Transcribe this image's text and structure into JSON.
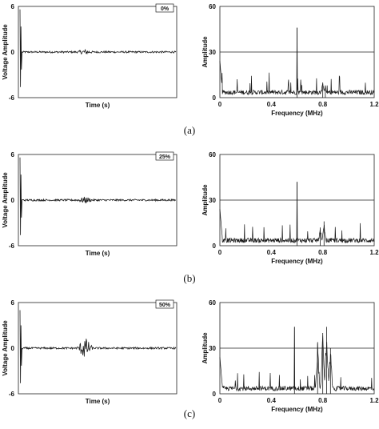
{
  "figure": {
    "rows": [
      {
        "panel_label": "(a)",
        "time_chart": {
          "type": "line",
          "badge": "0%",
          "ylabel": "Voltage Amplitude",
          "xlabel": "Time (s)",
          "yticks": [
            "6",
            "0",
            "-6"
          ],
          "ylim": [
            -6,
            6
          ],
          "burst_amplitude": 0.25,
          "initial_spike": [
            5.6,
            -4.6
          ]
        },
        "freq_chart": {
          "type": "line",
          "ylabel": "Amplitude",
          "xlabel": "Frequency (MHz)",
          "yticks": [
            "60",
            "30",
            "0"
          ],
          "xticks": [
            "0",
            "0.4",
            "0.8",
            "1.2"
          ],
          "ylim": [
            0,
            60
          ],
          "xlim": [
            0,
            1.2
          ],
          "reference_line": 30,
          "peaks": [
            {
              "x": 0.6,
              "y": 46
            },
            {
              "x": 0.8,
              "y": 10
            },
            {
              "x": 0.82,
              "y": 8
            }
          ]
        }
      },
      {
        "panel_label": "(b)",
        "time_chart": {
          "type": "line",
          "badge": "25%",
          "ylabel": "Voltage Amplitude",
          "xlabel": "Time (s)",
          "yticks": [
            "6",
            "0",
            "-6"
          ],
          "ylim": [
            -6,
            6
          ],
          "burst_amplitude": 0.35,
          "initial_spike": [
            5.6,
            -4.6
          ]
        },
        "freq_chart": {
          "type": "line",
          "ylabel": "Amplitude",
          "xlabel": "Frequency (MHz)",
          "yticks": [
            "60",
            "30",
            "0"
          ],
          "xticks": [
            "0",
            "0.4",
            "0.8",
            "1.2"
          ],
          "ylim": [
            0,
            60
          ],
          "xlim": [
            0,
            1.2
          ],
          "reference_line": 30,
          "peaks": [
            {
              "x": 0.6,
              "y": 42
            },
            {
              "x": 0.78,
              "y": 12
            },
            {
              "x": 0.81,
              "y": 16
            }
          ]
        }
      },
      {
        "panel_label": "(c)",
        "time_chart": {
          "type": "line",
          "badge": "50%",
          "ylabel": "Voltage Amplitude",
          "xlabel": "Time (s)",
          "yticks": [
            "6",
            "0",
            "-6"
          ],
          "ylim": [
            -6,
            6
          ],
          "burst_amplitude": 1.4,
          "initial_spike": [
            5.0,
            -4.6
          ]
        },
        "freq_chart": {
          "type": "line",
          "ylabel": "Amplitude",
          "xlabel": "Frequency (MHz)",
          "yticks": [
            "60",
            "30",
            "0"
          ],
          "xticks": [
            "0",
            "0.4",
            "0.8",
            "1.2"
          ],
          "ylim": [
            0,
            60
          ],
          "xlim": [
            0,
            1.2
          ],
          "reference_line": 30,
          "peaks": [
            {
              "x": 0.58,
              "y": 44
            },
            {
              "x": 0.76,
              "y": 34
            },
            {
              "x": 0.8,
              "y": 40
            },
            {
              "x": 0.83,
              "y": 44
            },
            {
              "x": 0.86,
              "y": 30
            }
          ]
        }
      }
    ]
  },
  "colors": {
    "trace": "#1a1a1a",
    "axis": "#222222",
    "background": "#ffffff"
  }
}
